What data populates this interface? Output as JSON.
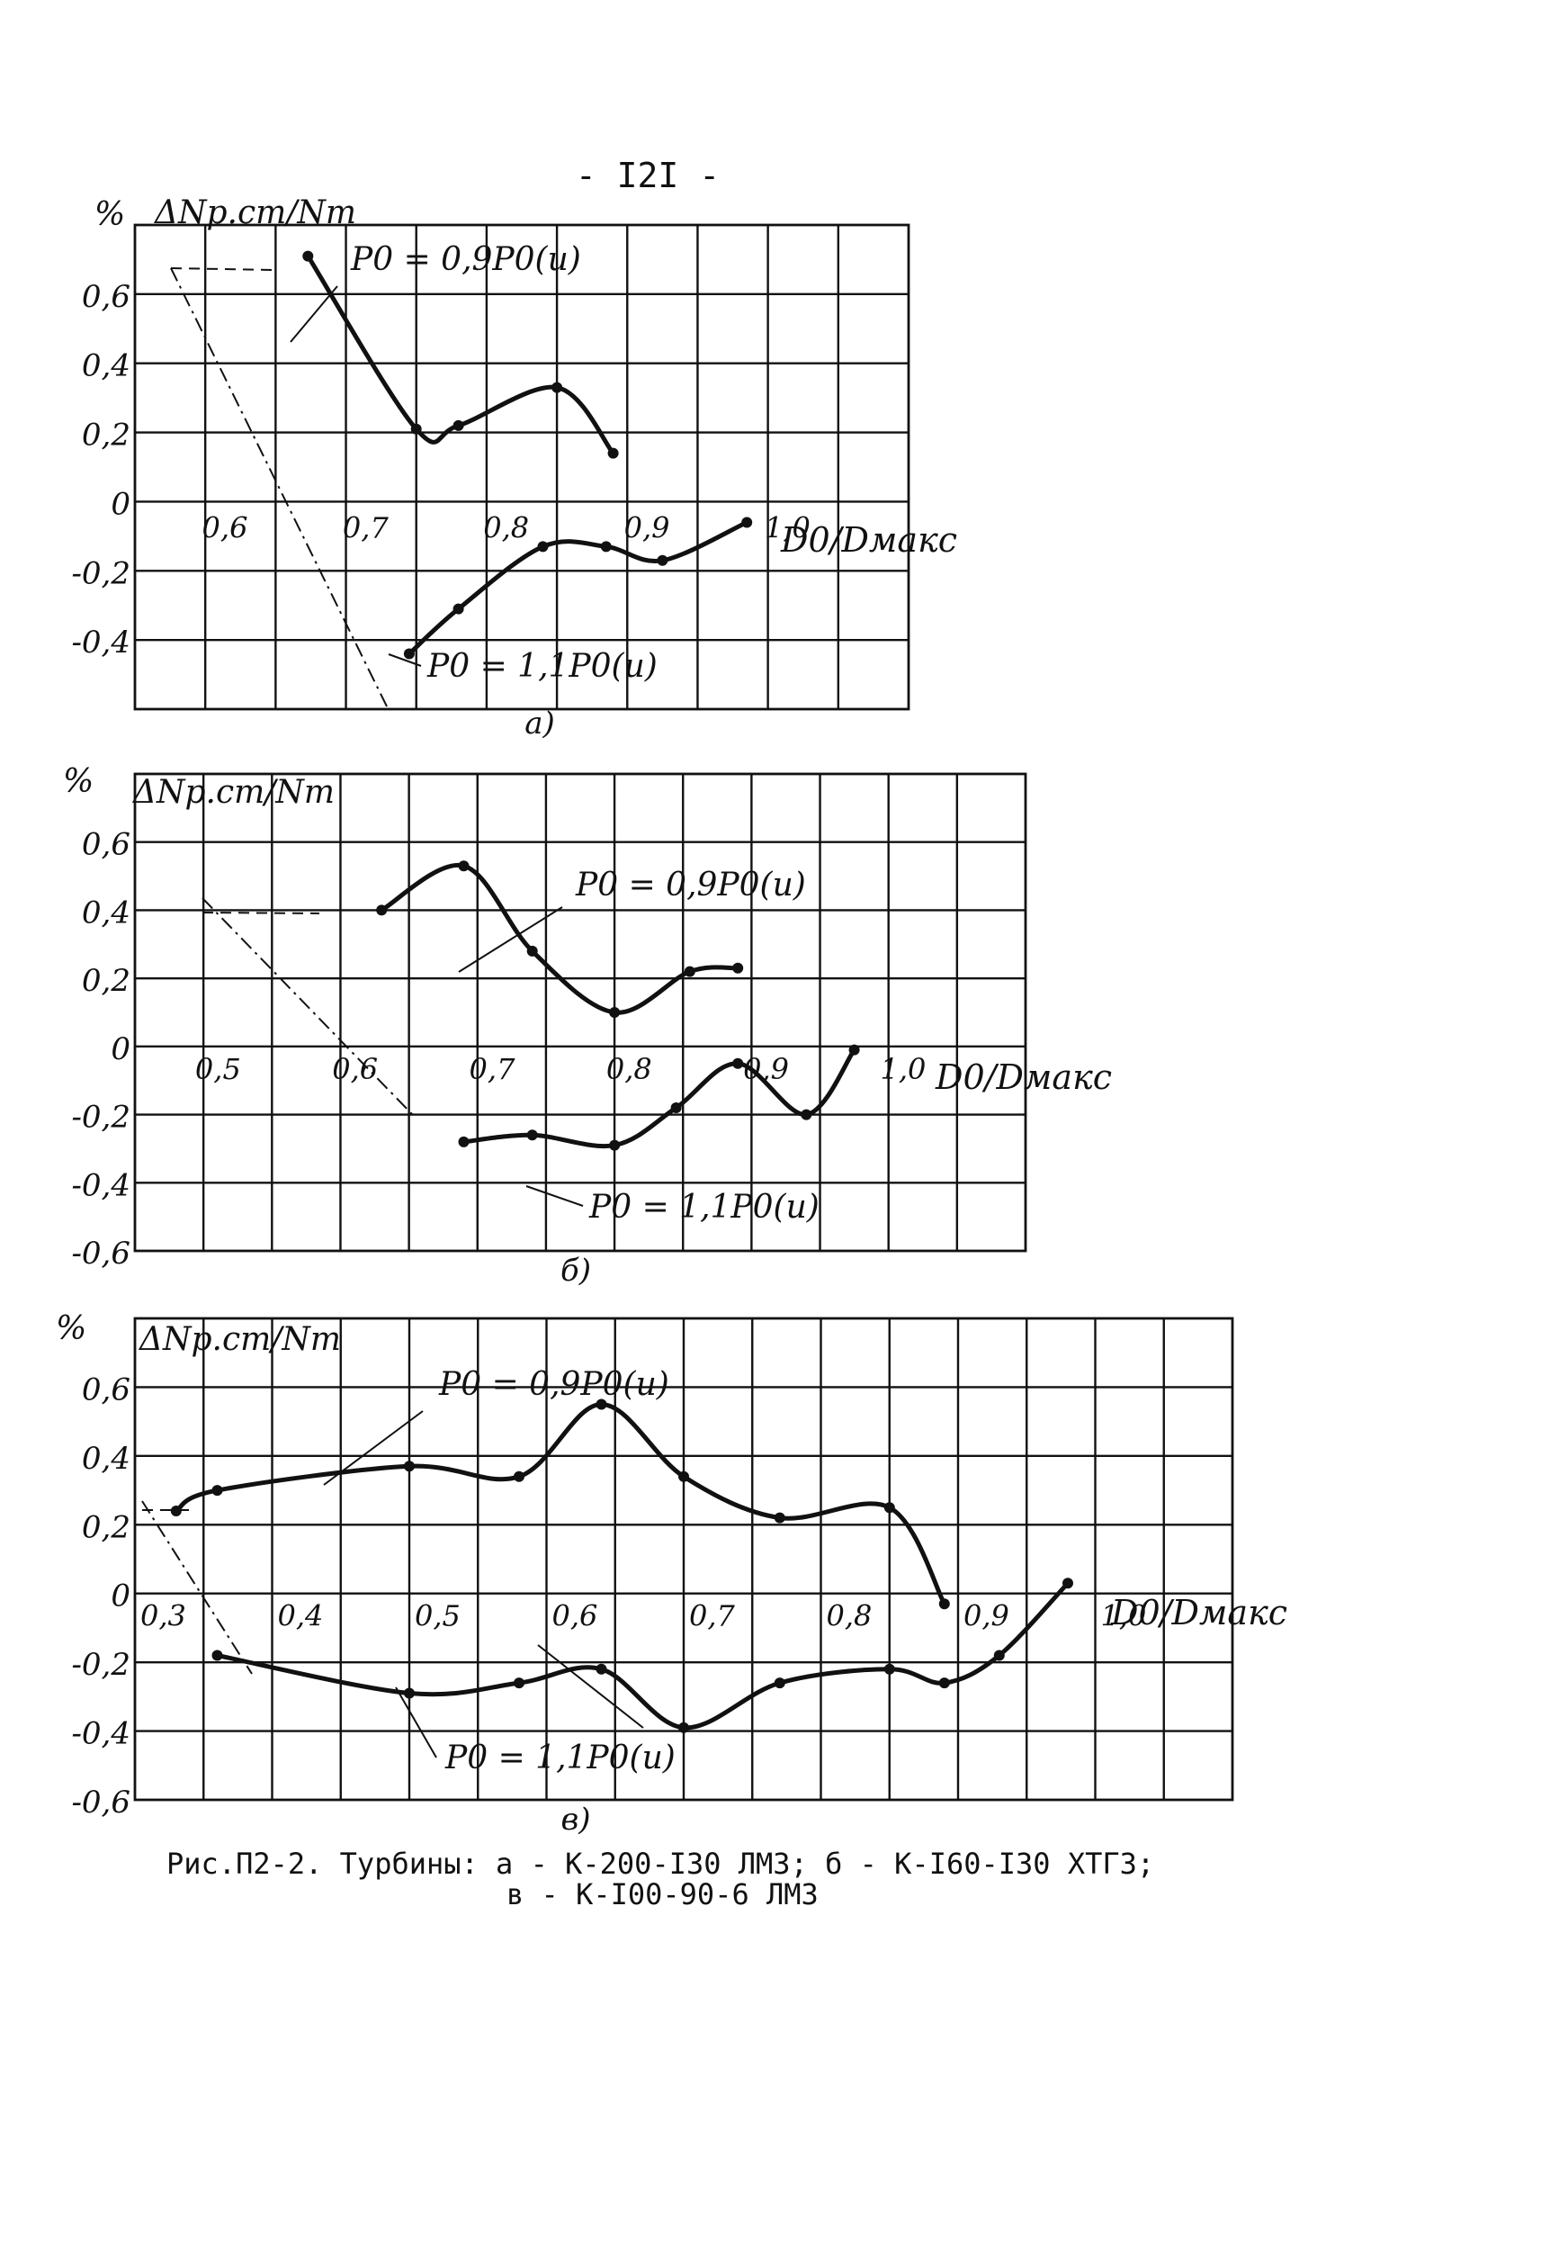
{
  "page_number": "- I2I -",
  "caption": {
    "line1": "Рис.П2-2. Турбины: а - К-200-I30 ЛМЗ; б - К-I60-I30 ХТГЗ;",
    "line2": "в - К-I00-90-6 ЛМЗ"
  },
  "chart_data": [
    {
      "type": "line",
      "panel_label": "а)",
      "unit_label": "%",
      "ylabel": "ΔNр.ст/Nт",
      "xlabel": "D0/Dмакс",
      "xlim": [
        0.56,
        1.11
      ],
      "ylim": [
        -0.6,
        0.8
      ],
      "x_ticks": [
        "0,6",
        "0,7",
        "0,8",
        "0,9",
        "1,0"
      ],
      "y_ticks": [
        "0,6",
        "0,4",
        "0,2",
        "0",
        "-0,2",
        "-0,4"
      ],
      "series": [
        {
          "name": "P0 = 0,9P0(u)",
          "x": [
            0.683,
            0.76,
            0.79,
            0.86,
            0.9
          ],
          "y": [
            0.71,
            0.21,
            0.22,
            0.33,
            0.14
          ]
        },
        {
          "name": "P0 = 1,1P0(u)",
          "x": [
            0.755,
            0.79,
            0.85,
            0.895,
            0.935,
            0.995
          ],
          "y": [
            -0.44,
            -0.31,
            -0.13,
            -0.13,
            -0.17,
            -0.06
          ]
        }
      ],
      "annotations": [
        {
          "text": "P0 = 0,9P0(u)",
          "series": 0
        },
        {
          "text": "P0 = 1,1P0(u)",
          "series": 1
        }
      ]
    },
    {
      "type": "line",
      "panel_label": "б)",
      "unit_label": "%",
      "ylabel": "ΔNр.ст/Nт",
      "xlabel": "D0/Dмакс",
      "xlim": [
        0.46,
        1.11
      ],
      "ylim": [
        -0.6,
        0.8
      ],
      "x_ticks": [
        "0,5",
        "0,6",
        "0,7",
        "0,8",
        "0,9",
        "1,0"
      ],
      "y_ticks": [
        "0,6",
        "0,4",
        "0,2",
        "0",
        "-0,2",
        "-0,4",
        "-0,6"
      ],
      "series": [
        {
          "name": "P0 = 0,9P0(u)",
          "x": [
            0.64,
            0.7,
            0.75,
            0.81,
            0.865,
            0.9
          ],
          "y": [
            0.4,
            0.53,
            0.28,
            0.1,
            0.22,
            0.23
          ]
        },
        {
          "name": "P0 = 1,1P0(u)",
          "x": [
            0.7,
            0.75,
            0.81,
            0.855,
            0.9,
            0.95,
            0.985
          ],
          "y": [
            -0.28,
            -0.26,
            -0.29,
            -0.18,
            -0.05,
            -0.2,
            -0.01
          ]
        }
      ],
      "annotations": [
        {
          "text": "P0 = 0,9P0(u)",
          "series": 0
        },
        {
          "text": "P0 = 1,1P0(u)",
          "series": 1
        }
      ]
    },
    {
      "type": "line",
      "panel_label": "в)",
      "unit_label": "%",
      "ylabel": "ΔNр.ст/Nт",
      "xlabel": "D0/Dмакс",
      "xlim": [
        0.3,
        1.1
      ],
      "ylim": [
        -0.6,
        0.8
      ],
      "x_ticks": [
        "0,3",
        "0,4",
        "0,5",
        "0,6",
        "0,7",
        "0,8",
        "0,9",
        "1,0"
      ],
      "y_ticks": [
        "0,6",
        "0,4",
        "0,2",
        "0",
        "-0,2",
        "-0,4",
        "-0,6"
      ],
      "series": [
        {
          "name": "P0 = 0,9P0(u)",
          "x": [
            0.33,
            0.36,
            0.5,
            0.58,
            0.64,
            0.7,
            0.77,
            0.85,
            0.89
          ],
          "y": [
            0.24,
            0.3,
            0.37,
            0.34,
            0.55,
            0.34,
            0.22,
            0.25,
            -0.03
          ]
        },
        {
          "name": "P0 = 1,1P0(u)",
          "x": [
            0.36,
            0.5,
            0.58,
            0.64,
            0.7,
            0.77,
            0.85,
            0.89,
            0.93,
            0.98
          ],
          "y": [
            -0.18,
            -0.29,
            -0.26,
            -0.22,
            -0.39,
            -0.26,
            -0.22,
            -0.26,
            -0.18,
            0.03
          ]
        }
      ],
      "annotations": [
        {
          "text": "P0 = 0,9P0(u)",
          "series": 0
        },
        {
          "text": "P0 = 1,1P0(u)",
          "series": 1
        }
      ]
    }
  ]
}
